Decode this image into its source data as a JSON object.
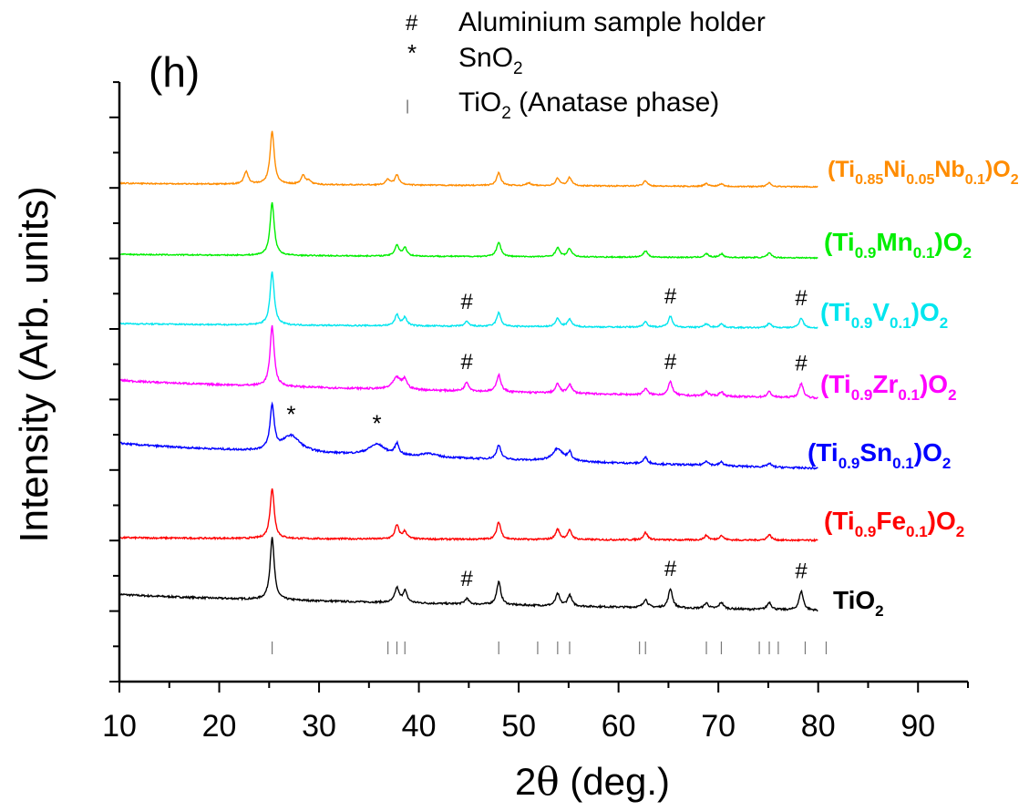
{
  "chart_data": {
    "type": "line",
    "panel_label": "(h)",
    "xlabel": "2θ (deg.)",
    "ylabel": "Intensity (Arb. units)",
    "xlim": [
      10,
      95
    ],
    "x_ticks": [
      10,
      20,
      30,
      40,
      50,
      60,
      70,
      80,
      90
    ],
    "y_ticks_labeled": false,
    "grid": false,
    "legend": {
      "placement": "top-center",
      "entries": [
        {
          "symbol": "#",
          "label": "Aluminium sample holder"
        },
        {
          "symbol": "*",
          "label": "SnO2"
        },
        {
          "symbol": "|",
          "label": "TiO2 (Anatase phase)"
        }
      ]
    },
    "reference_ticks": {
      "name": "TiO2 (Anatase phase)",
      "positions": [
        25.3,
        36.9,
        37.8,
        38.6,
        48.0,
        51.9,
        53.9,
        55.1,
        62.1,
        62.7,
        68.8,
        70.3,
        74.1,
        75.1,
        76.0,
        78.7,
        80.8
      ]
    },
    "series": [
      {
        "name": "TiO2",
        "name_parts": [
          [
            "TiO",
            ""
          ],
          [
            "2",
            "sub"
          ]
        ],
        "color": "#000000",
        "offset": 0,
        "peaks": [
          [
            25.3,
            68
          ],
          [
            37.8,
            16
          ],
          [
            38.6,
            13
          ],
          [
            44.8,
            6
          ],
          [
            48.0,
            25
          ],
          [
            53.9,
            13
          ],
          [
            55.1,
            12
          ],
          [
            62.7,
            9
          ],
          [
            65.2,
            21
          ],
          [
            68.8,
            6
          ],
          [
            70.3,
            7
          ],
          [
            75.1,
            8
          ],
          [
            78.3,
            21
          ]
        ],
        "baseline_start": 20,
        "baseline_end": 2,
        "noise": 2.0,
        "markers": [
          {
            "symbol": "#",
            "x": 44.8
          },
          {
            "symbol": "#",
            "x": 65.2
          },
          {
            "symbol": "#",
            "x": 78.3
          }
        ]
      },
      {
        "name": "(Ti0.9Fe0.1)O2",
        "name_parts": [
          [
            "(Ti",
            ""
          ],
          [
            "0.9",
            "sub"
          ],
          [
            "Fe",
            ""
          ],
          [
            "0.1",
            "sub"
          ],
          [
            ")O",
            ""
          ],
          [
            "2",
            "sub"
          ]
        ],
        "color": "#ff0000",
        "offset": 78,
        "peaks": [
          [
            25.3,
            55
          ],
          [
            37.8,
            15
          ],
          [
            38.6,
            8
          ],
          [
            48.0,
            19
          ],
          [
            53.9,
            11
          ],
          [
            55.1,
            10
          ],
          [
            62.7,
            8
          ],
          [
            68.8,
            5
          ],
          [
            70.3,
            5
          ],
          [
            75.1,
            6
          ]
        ],
        "baseline_start": 4,
        "baseline_end": 1,
        "noise": 1.8,
        "markers": []
      },
      {
        "name": "(Ti0.9Sn0.1)O2",
        "name_parts": [
          [
            "(Ti",
            ""
          ],
          [
            "0.9",
            "sub"
          ],
          [
            "Sn",
            ""
          ],
          [
            "0.1",
            "sub"
          ],
          [
            ")O",
            ""
          ],
          [
            "2",
            "sub"
          ]
        ],
        "color": "#0000ff",
        "offset": 154,
        "peaks": [
          [
            25.3,
            48
          ],
          [
            27.2,
            18,
            1.1
          ],
          [
            35.8,
            12,
            1.0
          ],
          [
            37.8,
            12
          ],
          [
            41.0,
            4,
            0.8
          ],
          [
            48.0,
            16
          ],
          [
            53.9,
            14,
            0.6
          ],
          [
            55.1,
            9
          ],
          [
            62.7,
            7
          ],
          [
            68.8,
            5
          ],
          [
            70.3,
            4
          ],
          [
            75.1,
            4
          ]
        ],
        "baseline_start": 32,
        "baseline_end": 4,
        "noise": 2.0,
        "markers": [
          {
            "symbol": "*",
            "x": 27.2
          },
          {
            "symbol": "*",
            "x": 35.8
          }
        ]
      },
      {
        "name": "(Ti0.9Zr0.1)O2",
        "name_parts": [
          [
            "(Ti",
            ""
          ],
          [
            "0.9",
            "sub"
          ],
          [
            "Zr",
            ""
          ],
          [
            "0.1",
            "sub"
          ],
          [
            ")O",
            ""
          ],
          [
            "2",
            "sub"
          ]
        ],
        "color": "#ff00ff",
        "offset": 233,
        "peaks": [
          [
            25.3,
            66
          ],
          [
            37.8,
            13,
            0.5
          ],
          [
            38.6,
            10
          ],
          [
            44.8,
            10
          ],
          [
            48.0,
            19
          ],
          [
            53.9,
            10
          ],
          [
            55.1,
            10
          ],
          [
            62.7,
            7
          ],
          [
            65.2,
            15
          ],
          [
            68.8,
            5
          ],
          [
            70.3,
            5
          ],
          [
            75.1,
            6
          ],
          [
            78.3,
            16
          ]
        ],
        "baseline_start": 22,
        "baseline_end": 2,
        "noise": 2.0,
        "markers": [
          {
            "symbol": "#",
            "x": 44.8
          },
          {
            "symbol": "#",
            "x": 65.2
          },
          {
            "symbol": "#",
            "x": 78.3
          }
        ]
      },
      {
        "name": "(Ti0.9V0.1)O2",
        "name_parts": [
          [
            "(Ti",
            ""
          ],
          [
            "0.9",
            "sub"
          ],
          [
            "V",
            ""
          ],
          [
            "0.1",
            "sub"
          ],
          [
            ")O",
            ""
          ],
          [
            "2",
            "sub"
          ]
        ],
        "color": "#00e5ee",
        "offset": 311,
        "peaks": [
          [
            25.3,
            58
          ],
          [
            37.8,
            12
          ],
          [
            38.6,
            9
          ],
          [
            44.8,
            5
          ],
          [
            48.0,
            15
          ],
          [
            53.9,
            9
          ],
          [
            55.1,
            8
          ],
          [
            62.7,
            6
          ],
          [
            65.2,
            12
          ],
          [
            68.8,
            4
          ],
          [
            70.3,
            4
          ],
          [
            75.1,
            5
          ],
          [
            78.3,
            11
          ]
        ],
        "baseline_start": 6,
        "baseline_end": 1,
        "noise": 1.5,
        "markers": [
          {
            "symbol": "#",
            "x": 44.8
          },
          {
            "symbol": "#",
            "x": 65.2
          },
          {
            "symbol": "#",
            "x": 78.3
          }
        ]
      },
      {
        "name": "(Ti0.9Mn0.1)O2",
        "name_parts": [
          [
            "(Ti",
            ""
          ],
          [
            "0.9",
            "sub"
          ],
          [
            "Mn",
            ""
          ],
          [
            "0.1",
            "sub"
          ],
          [
            ")O",
            ""
          ],
          [
            "2",
            "sub"
          ]
        ],
        "color": "#00ee00",
        "offset": 388,
        "peaks": [
          [
            25.3,
            58
          ],
          [
            37.8,
            12
          ],
          [
            38.6,
            9
          ],
          [
            48.0,
            16
          ],
          [
            53.9,
            10
          ],
          [
            55.1,
            9
          ],
          [
            62.7,
            7
          ],
          [
            68.8,
            4
          ],
          [
            70.3,
            4
          ],
          [
            75.1,
            5
          ]
        ],
        "baseline_start": 5,
        "baseline_end": 1,
        "noise": 1.3,
        "markers": []
      },
      {
        "name": "(Ti0.85Ni0.05Nb0.1)O2",
        "name_parts": [
          [
            "(Ti",
            ""
          ],
          [
            "0.85",
            "sub"
          ],
          [
            "Ni",
            ""
          ],
          [
            "0.05",
            "sub"
          ],
          [
            "Nb",
            ""
          ],
          [
            "0.1",
            "sub"
          ],
          [
            ")O",
            ""
          ],
          [
            "2",
            "sub"
          ]
        ],
        "color": "#ff8c00",
        "offset": 466,
        "peaks": [
          [
            22.7,
            14
          ],
          [
            25.3,
            58
          ],
          [
            28.4,
            10
          ],
          [
            29.0,
            4
          ],
          [
            36.9,
            6
          ],
          [
            37.8,
            11
          ],
          [
            48.0,
            14
          ],
          [
            51.0,
            3
          ],
          [
            53.9,
            8
          ],
          [
            55.1,
            9
          ],
          [
            62.7,
            6
          ],
          [
            68.8,
            3
          ],
          [
            70.3,
            3
          ],
          [
            75.1,
            4
          ]
        ],
        "baseline_start": 5,
        "baseline_end": 1,
        "noise": 1.3,
        "markers": []
      }
    ]
  }
}
